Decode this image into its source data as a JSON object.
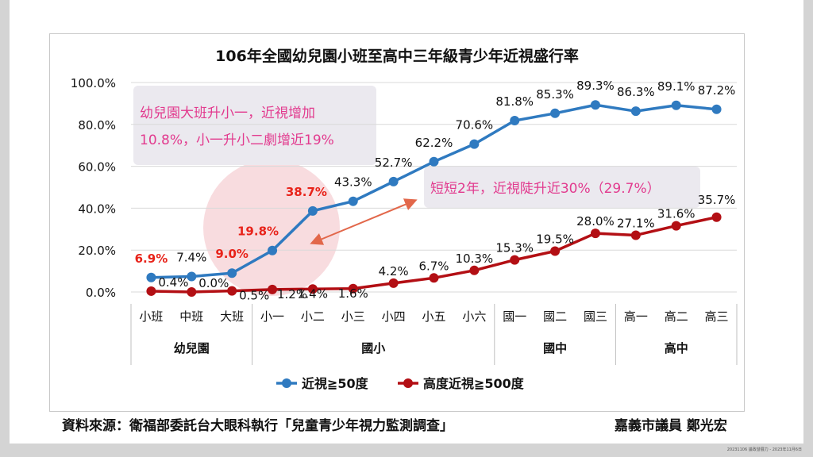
{
  "source_text": "資料來源：衛福部委託台大眼科執行「兒童青少年視力監測調查」",
  "author_text": "嘉義市議員 鄭光宏",
  "footnote": "20231106 議政發展力 - 2023年11月6日",
  "callouts": {
    "kindergarten_line1": "幼兒園大班升小一，近視增加",
    "kindergarten_line2": "10.8%，小一升小二劇增近19%",
    "two_years": "短短2年，近視陡升近30%（29.7%）"
  },
  "colors": {
    "blue_series": "#2f7ac0",
    "red_series": "#b30f14",
    "highlight_label": "#e8231a",
    "callout_text": "#e23a8e",
    "callout_bg": "#ebe9ef",
    "circle_fill": "#f4c4c9",
    "arrow": "#e2674a"
  },
  "chart_data": {
    "type": "line",
    "title": "106年全國幼兒園小班至高中三年級青少年近視盛行率",
    "categories": [
      "小班",
      "中班",
      "大班",
      "小一",
      "小二",
      "小三",
      "小四",
      "小五",
      "小六",
      "國一",
      "國二",
      "國三",
      "高一",
      "高二",
      "高三"
    ],
    "groups": [
      {
        "label": "幼兒園",
        "count": 3
      },
      {
        "label": "國小",
        "count": 6
      },
      {
        "label": "國中",
        "count": 3
      },
      {
        "label": "高中",
        "count": 3
      }
    ],
    "y_ticks": [
      "0.0%",
      "20.0%",
      "40.0%",
      "60.0%",
      "80.0%",
      "100.0%"
    ],
    "ylim": [
      0,
      100
    ],
    "grid": true,
    "legend_position": "bottom",
    "series": [
      {
        "name": "近視≧50度",
        "values": [
          6.9,
          7.4,
          9.0,
          19.8,
          38.7,
          43.3,
          52.7,
          62.2,
          70.6,
          81.8,
          85.3,
          89.3,
          86.3,
          89.1,
          87.2
        ],
        "labels": [
          "6.9%",
          "7.4%",
          "9.0%",
          "19.8%",
          "38.7%",
          "43.3%",
          "52.7%",
          "62.2%",
          "70.6%",
          "81.8%",
          "85.3%",
          "89.3%",
          "86.3%",
          "89.1%",
          "87.2%"
        ],
        "highlighted": [
          0,
          2,
          3,
          4
        ]
      },
      {
        "name": "高度近視≧500度",
        "values": [
          0.4,
          0.0,
          0.5,
          1.2,
          1.4,
          1.6,
          4.2,
          6.7,
          10.3,
          15.3,
          19.5,
          28.0,
          27.1,
          31.6,
          35.7
        ],
        "labels": [
          "0.4%",
          "0.0%",
          "0.5%",
          "1.2%",
          "1.4%",
          "1.6%",
          "4.2%",
          "6.7%",
          "10.3%",
          "15.3%",
          "19.5%",
          "28.0%",
          "27.1%",
          "31.6%",
          "35.7%"
        ],
        "highlighted": []
      }
    ]
  }
}
